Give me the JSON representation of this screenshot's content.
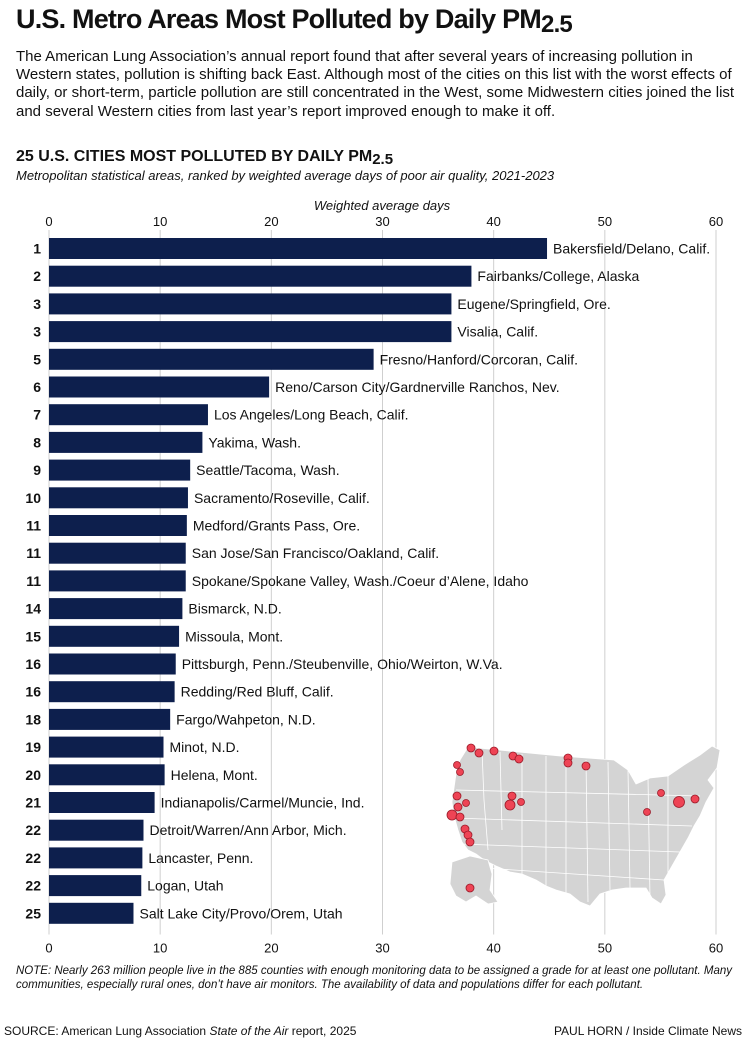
{
  "header": {
    "title": "U.S. Metro Areas Most Polluted by Daily PM",
    "title_sub": "2.5",
    "lede": "The American Lung Association’s annual report found that after several years of increasing pollution in Western states, pollution is shifting back East. Although most of the cities on this list with the worst effects of daily, or short-term, particle pollution are still concentrated in the West, some Midwestern cities joined the list and several Western cities from last year’s report improved enough to make it off."
  },
  "chart_data": {
    "type": "bar",
    "orientation": "horizontal",
    "title": "25 U.S. CITIES MOST POLLUTED BY DAILY PM",
    "title_sub": "2.5",
    "subtitle": "Metropolitan statistical areas, ranked by weighted average days of poor air quality, 2021-2023",
    "xlabel": "Weighted average days",
    "xlim": [
      0,
      60
    ],
    "xticks": [
      0,
      10,
      20,
      30,
      40,
      50,
      60
    ],
    "bar_color": "#0d1f4d",
    "ranks": [
      "1",
      "2",
      "3",
      "3",
      "5",
      "6",
      "7",
      "8",
      "9",
      "10",
      "11",
      "11",
      "11",
      "14",
      "15",
      "16",
      "16",
      "18",
      "19",
      "20",
      "21",
      "22",
      "22",
      "22",
      "25"
    ],
    "categories": [
      "Bakersfield/Delano, Calif.",
      "Fairbanks/College, Alaska",
      "Eugene/Springfield, Ore.",
      "Visalia, Calif.",
      "Fresno/Hanford/Corcoran, Calif.",
      "Reno/Carson City/Gardnerville Ranchos, Nev.",
      "Los Angeles/Long Beach, Calif.",
      "Yakima, Wash.",
      "Seattle/Tacoma, Wash.",
      "Sacramento/Roseville, Calif.",
      "Medford/Grants Pass, Ore.",
      "San Jose/San Francisco/Oakland, Calif.",
      "Spokane/Spokane Valley, Wash./Coeur d’Alene, Idaho",
      "Bismarck, N.D.",
      "Missoula, Mont.",
      "Pittsburgh, Penn./Steubenville, Ohio/Weirton, W.Va.",
      "Redding/Red Bluff, Calif.",
      "Fargo/Wahpeton, N.D.",
      "Minot, N.D.",
      "Helena, Mont.",
      "Indianapolis/Carmel/Muncie, Ind.",
      "Detroit/Warren/Ann Arbor, Mich.",
      "Lancaster, Penn.",
      "Logan, Utah",
      "Salt Lake City/Provo/Orem, Utah"
    ],
    "values": [
      44.8,
      38.0,
      36.2,
      36.2,
      29.2,
      19.8,
      14.3,
      13.8,
      12.7,
      12.5,
      12.4,
      12.3,
      12.3,
      12.0,
      11.7,
      11.4,
      11.3,
      10.9,
      10.3,
      10.4,
      9.5,
      8.5,
      8.4,
      8.3,
      7.6
    ],
    "map": {
      "description_colors": {
        "land": "#d4d4d4",
        "border": "#ffffff",
        "marker": "#ee4455",
        "marker_stroke": "#9a1a28"
      }
    }
  },
  "footer": {
    "note": "NOTE: Nearly 263 million people live in the 885 counties with enough monitoring data to be assigned a grade for at least one pollutant. Many communities, especially rural ones, don’t have air monitors. The availability of data and populations differ for each pollutant.",
    "source_prefix": "SOURCE: American Lung Association ",
    "source_title": "State of the Air",
    "source_suffix": " report, 2025",
    "credit": "PAUL HORN / Inside Climate News"
  }
}
